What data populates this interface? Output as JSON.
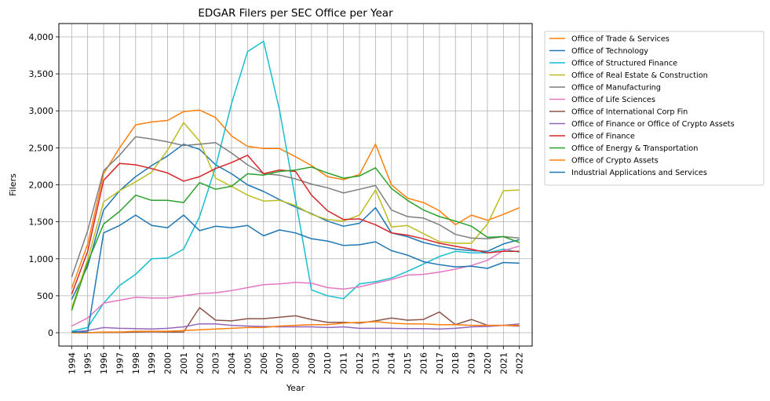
{
  "chart_data": {
    "type": "line",
    "title": "EDGAR Filers per SEC Office per Year",
    "xlabel": "Year",
    "ylabel": "Filers",
    "x": [
      1994,
      1995,
      1996,
      1997,
      1998,
      1999,
      2000,
      2001,
      2002,
      2003,
      2004,
      2005,
      2006,
      2007,
      2008,
      2009,
      2010,
      2011,
      2012,
      2013,
      2014,
      2015,
      2016,
      2017,
      2018,
      2019,
      2020,
      2021,
      2022
    ],
    "xlim": [
      1993.2,
      2022.8
    ],
    "ylim": [
      -180,
      4180
    ],
    "yticks": [
      0,
      500,
      1000,
      1500,
      2000,
      2500,
      3000,
      3500,
      4000
    ],
    "ytick_labels": [
      "0",
      "500",
      "1,000",
      "1,500",
      "2,000",
      "2,500",
      "3,000",
      "3,500",
      "4,000"
    ],
    "grid": true,
    "legend_position": "outside-right",
    "series": [
      {
        "name": "Office of Trade & Services",
        "color": "#ff7f0e",
        "values": [
          600,
          1200,
          2150,
          2500,
          2810,
          2850,
          2870,
          2990,
          3010,
          2910,
          2660,
          2520,
          2490,
          2490,
          2380,
          2260,
          2110,
          2070,
          2140,
          2550,
          2000,
          1820,
          1760,
          1650,
          1460,
          1590,
          1520,
          1600,
          1690
        ]
      },
      {
        "name": "Office of Technology",
        "color": "#1f77b4",
        "values": [
          450,
          900,
          1660,
          1920,
          2110,
          2260,
          2390,
          2550,
          2480,
          2270,
          2150,
          2000,
          1910,
          1800,
          1700,
          1610,
          1510,
          1440,
          1480,
          1690,
          1350,
          1300,
          1220,
          1170,
          1130,
          1110,
          1100,
          1200,
          1260
        ]
      },
      {
        "name": "Office of Structured Finance",
        "color": "#17becf",
        "values": [
          20,
          70,
          400,
          640,
          790,
          1000,
          1010,
          1130,
          1570,
          2240,
          3100,
          3800,
          3940,
          3010,
          1800,
          580,
          500,
          460,
          660,
          690,
          740,
          830,
          930,
          1030,
          1100,
          1080,
          1080,
          1130,
          1090
        ]
      },
      {
        "name": "Office of Real Estate & Construction",
        "color": "#bcbd22",
        "values": [
          330,
          990,
          1770,
          1920,
          2040,
          2170,
          2470,
          2840,
          2590,
          2090,
          1980,
          1860,
          1780,
          1790,
          1720,
          1600,
          1530,
          1510,
          1590,
          1930,
          1430,
          1450,
          1340,
          1230,
          1210,
          1210,
          1470,
          1920,
          1930
        ]
      },
      {
        "name": "Office of Manufacturing",
        "color": "#7f7f7f",
        "values": [
          750,
          1380,
          2190,
          2400,
          2650,
          2620,
          2580,
          2530,
          2550,
          2570,
          2430,
          2270,
          2150,
          2130,
          2080,
          2010,
          1960,
          1890,
          1940,
          1990,
          1660,
          1570,
          1550,
          1460,
          1330,
          1280,
          1270,
          1300,
          1280
        ]
      },
      {
        "name": "Office of Life Sciences",
        "color": "#e377c2",
        "values": [
          90,
          200,
          400,
          440,
          480,
          470,
          470,
          500,
          530,
          540,
          570,
          610,
          650,
          660,
          680,
          670,
          610,
          590,
          620,
          670,
          720,
          780,
          790,
          820,
          860,
          910,
          980,
          1110,
          1170
        ]
      },
      {
        "name": "Office of International Corp Fin",
        "color": "#8c564b",
        "values": [
          0,
          0,
          5,
          5,
          10,
          15,
          10,
          10,
          340,
          170,
          160,
          190,
          190,
          210,
          230,
          180,
          140,
          140,
          130,
          160,
          200,
          170,
          180,
          280,
          110,
          180,
          100,
          100,
          90
        ]
      },
      {
        "name": "Office of Finance or Office of Crypto Assets",
        "color": "#9467bd",
        "values": [
          10,
          30,
          70,
          60,
          55,
          50,
          60,
          80,
          120,
          120,
          100,
          90,
          85,
          80,
          80,
          80,
          70,
          80,
          60,
          60,
          60,
          55,
          55,
          50,
          60,
          80,
          85,
          100,
          120
        ]
      },
      {
        "name": "Office of Finance",
        "color": "#d62728",
        "values": [
          520,
          1100,
          2060,
          2290,
          2270,
          2220,
          2160,
          2050,
          2110,
          2220,
          2300,
          2400,
          2150,
          2200,
          2180,
          1860,
          1650,
          1530,
          1540,
          1460,
          1350,
          1320,
          1270,
          1210,
          1170,
          1130,
          1080,
          1100,
          1100
        ]
      },
      {
        "name": "Office of Energy & Transportation",
        "color": "#2ca02c",
        "values": [
          300,
          950,
          1470,
          1640,
          1860,
          1790,
          1790,
          1760,
          2030,
          1940,
          1980,
          2150,
          2130,
          2180,
          2200,
          2240,
          2160,
          2090,
          2120,
          2230,
          1950,
          1790,
          1660,
          1570,
          1510,
          1440,
          1290,
          1300,
          1220
        ]
      },
      {
        "name": "Office of Crypto Assets",
        "color": "#ff7f0e",
        "values": [
          0,
          0,
          10,
          10,
          20,
          20,
          20,
          30,
          40,
          50,
          60,
          70,
          70,
          90,
          100,
          110,
          110,
          130,
          140,
          150,
          130,
          120,
          120,
          110,
          110,
          100,
          100,
          100,
          100
        ]
      },
      {
        "name": "Industrial Applications and Services",
        "color": "#1f77b4",
        "values": [
          10,
          10,
          1350,
          1450,
          1590,
          1450,
          1420,
          1590,
          1380,
          1440,
          1420,
          1450,
          1310,
          1390,
          1350,
          1270,
          1240,
          1180,
          1190,
          1230,
          1110,
          1050,
          960,
          920,
          890,
          900,
          870,
          950,
          940
        ]
      }
    ]
  }
}
